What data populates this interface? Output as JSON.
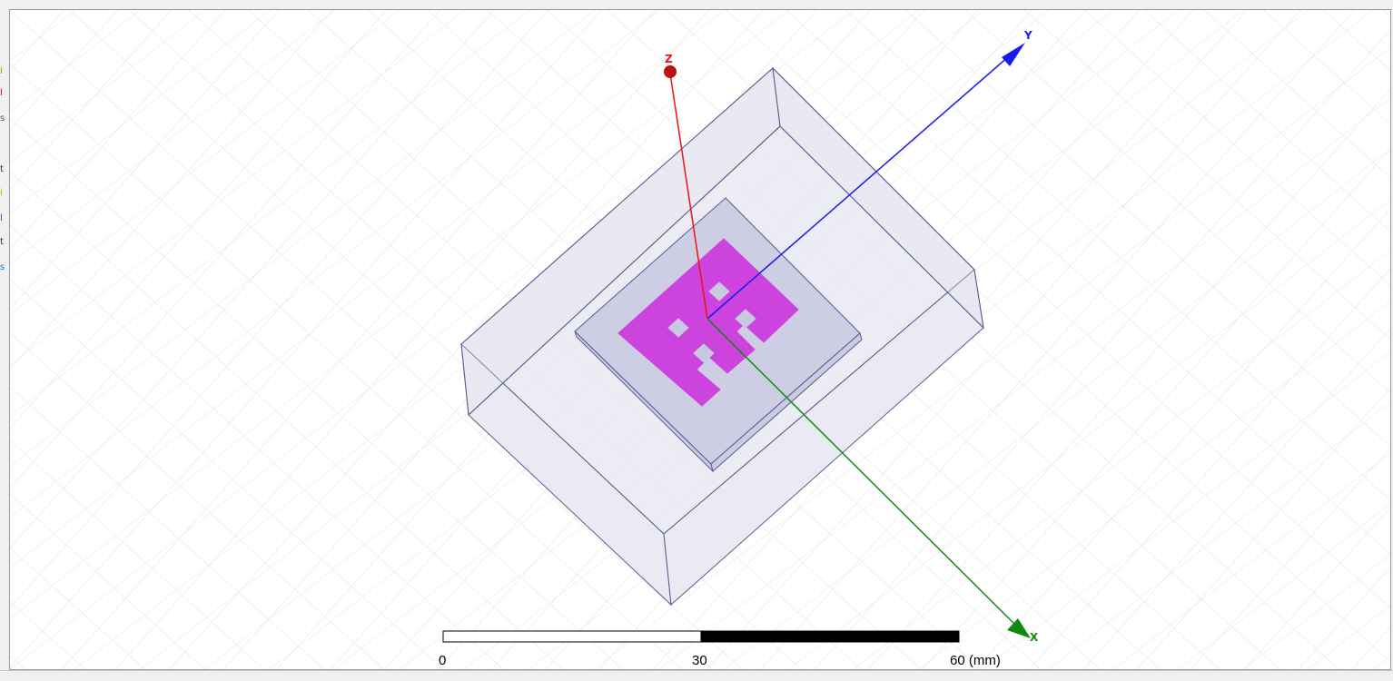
{
  "left_strip": {
    "fragments": [
      {
        "text": "i",
        "color": "#c07800"
      },
      {
        "text": "l",
        "color": "#c00000"
      },
      {
        "text": "s",
        "color": "#555555"
      },
      {
        "text": "t",
        "color": "#333333"
      },
      {
        "text": "i",
        "color": "#d0a000"
      },
      {
        "text": "l",
        "color": "#2050c0"
      },
      {
        "text": "t",
        "color": "#333333"
      },
      {
        "text": "s",
        "color": "#2080d0"
      }
    ]
  },
  "viewport": {
    "axes": {
      "x": {
        "label": "X",
        "color": "#118811"
      },
      "y": {
        "label": "Y",
        "color": "#1a1aee"
      },
      "z": {
        "label": "Z",
        "color": "#ee1111"
      }
    },
    "model": {
      "box_color": "#e6e6f2",
      "box_edge": "#5a5a8c",
      "substrate_color": "#c8c8e0",
      "patch_color": "#cc44dd"
    },
    "ruler": {
      "labels": [
        "0",
        "30",
        "60 (mm)"
      ]
    }
  }
}
